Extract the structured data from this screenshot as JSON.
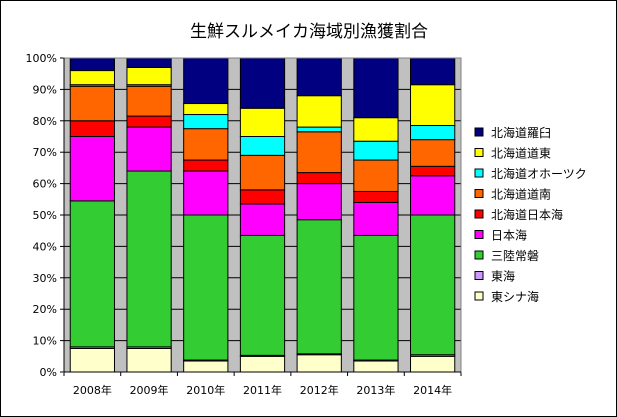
{
  "chart_data": {
    "type": "bar",
    "stacked": true,
    "title": "生鮮スルメイカ海域別漁獲割合",
    "categories": [
      "2008年",
      "2009年",
      "2010年",
      "2011年",
      "2012年",
      "2013年",
      "2014年"
    ],
    "ylim": [
      0,
      100
    ],
    "yticks": [
      "0%",
      "10%",
      "20%",
      "30%",
      "40%",
      "50%",
      "60%",
      "70%",
      "80%",
      "90%",
      "100%"
    ],
    "legend_position": "right",
    "grid": true,
    "series": [
      {
        "name": "東シナ海",
        "color": "#ffffcc",
        "values": [
          7.5,
          7.5,
          3.5,
          5,
          5.5,
          3.5,
          5
        ]
      },
      {
        "name": "東海",
        "color": "#cc99ff",
        "values": [
          0.5,
          0.5,
          0.3,
          0.3,
          0.3,
          0.3,
          0.5
        ]
      },
      {
        "name": "三陸常磐",
        "color": "#33cc33",
        "values": [
          46.5,
          56,
          46.2,
          38.2,
          42.7,
          39.7,
          44.5
        ]
      },
      {
        "name": "日本海",
        "color": "#ff00ff",
        "values": [
          20.5,
          14,
          14,
          10,
          11.5,
          10.5,
          12.5
        ]
      },
      {
        "name": "北海道日本海",
        "color": "#ff0000",
        "values": [
          5,
          3.5,
          3.5,
          4.5,
          3.5,
          3.5,
          3
        ]
      },
      {
        "name": "北海道道南",
        "color": "#ff6600",
        "values": [
          11,
          9.5,
          10,
          11,
          13,
          10,
          8.5
        ]
      },
      {
        "name": "北海道オホーツク",
        "color": "#00ffff",
        "values": [
          0.5,
          0.5,
          4.5,
          6,
          1.5,
          6,
          4.5
        ]
      },
      {
        "name": "北海道道東",
        "color": "#ffff00",
        "values": [
          4.5,
          5.5,
          3.5,
          9,
          10,
          7.5,
          13
        ]
      },
      {
        "name": "北海道羅臼",
        "color": "#000080",
        "values": [
          4,
          3,
          14.5,
          16,
          12,
          19,
          8.5
        ]
      }
    ]
  }
}
